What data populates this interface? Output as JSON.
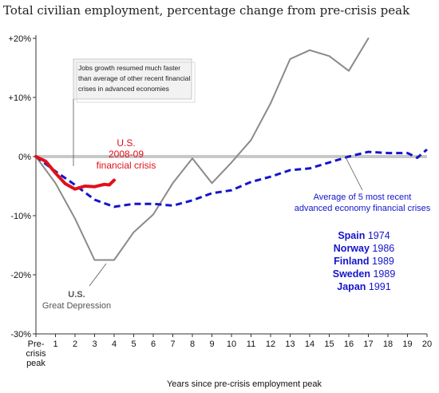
{
  "title": "Total civilian employment, percentage change from pre-crisis peak",
  "chart_data": {
    "type": "line",
    "xlabel": "Years since pre-crisis employment peak",
    "ylabel": "",
    "xlim": [
      0,
      20
    ],
    "ylim": [
      -30,
      20
    ],
    "x_ticks": [
      {
        "value": 0,
        "label": "Pre-\ncrisis\npeak"
      },
      {
        "value": 1,
        "label": "1"
      },
      {
        "value": 2,
        "label": "2"
      },
      {
        "value": 3,
        "label": "3"
      },
      {
        "value": 4,
        "label": "4"
      },
      {
        "value": 5,
        "label": "5"
      },
      {
        "value": 6,
        "label": "6"
      },
      {
        "value": 7,
        "label": "7"
      },
      {
        "value": 8,
        "label": "8"
      },
      {
        "value": 9,
        "label": "9"
      },
      {
        "value": 10,
        "label": "10"
      },
      {
        "value": 11,
        "label": "11"
      },
      {
        "value": 12,
        "label": "12"
      },
      {
        "value": 13,
        "label": "13"
      },
      {
        "value": 14,
        "label": "14"
      },
      {
        "value": 15,
        "label": "15"
      },
      {
        "value": 16,
        "label": "16"
      },
      {
        "value": 17,
        "label": "17"
      },
      {
        "value": 18,
        "label": "18"
      },
      {
        "value": 19,
        "label": "19"
      },
      {
        "value": 20,
        "label": "20"
      }
    ],
    "y_ticks": [
      {
        "value": 20,
        "label": "+20%"
      },
      {
        "value": 10,
        "label": "+10%"
      },
      {
        "value": 0,
        "label": "0%"
      },
      {
        "value": -10,
        "label": "-10%"
      },
      {
        "value": -20,
        "label": "-20%"
      },
      {
        "value": -30,
        "label": "-30%"
      }
    ],
    "grid": false,
    "series": [
      {
        "name": "U.S. Great Depression",
        "color": "#8a8a8a",
        "style": "solid",
        "points": [
          [
            0,
            0
          ],
          [
            1,
            -4.5
          ],
          [
            2,
            -10.5
          ],
          [
            3,
            -17.5
          ],
          [
            4,
            -17.5
          ],
          [
            5,
            -12.8
          ],
          [
            6,
            -9.8
          ],
          [
            7,
            -4.5
          ],
          [
            8,
            -0.3
          ],
          [
            9,
            -4.5
          ],
          [
            10,
            -1
          ],
          [
            11,
            2.8
          ],
          [
            12,
            9
          ],
          [
            13,
            16.5
          ],
          [
            14,
            18
          ],
          [
            15,
            17
          ],
          [
            16,
            14.5
          ],
          [
            17,
            20
          ]
        ]
      },
      {
        "name": "U.S. 2008-09 financial crisis",
        "color": "#e0101a",
        "style": "solid",
        "points": [
          [
            0,
            0
          ],
          [
            0.5,
            -0.8
          ],
          [
            1,
            -2.8
          ],
          [
            1.5,
            -4.6
          ],
          [
            2,
            -5.5
          ],
          [
            2.5,
            -5
          ],
          [
            3,
            -5.1
          ],
          [
            3.5,
            -4.7
          ],
          [
            3.75,
            -4.8
          ],
          [
            4,
            -4
          ]
        ]
      },
      {
        "name": "Average of 5 most recent advanced economy financial crises",
        "color": "#1414cc",
        "style": "dashed",
        "points": [
          [
            0,
            0
          ],
          [
            1,
            -2.5
          ],
          [
            2,
            -4.8
          ],
          [
            3,
            -7.3
          ],
          [
            4,
            -8.5
          ],
          [
            5,
            -8
          ],
          [
            6,
            -8
          ],
          [
            7,
            -8.3
          ],
          [
            8,
            -7.4
          ],
          [
            9,
            -6.2
          ],
          [
            10,
            -5.7
          ],
          [
            11,
            -4.3
          ],
          [
            12,
            -3.4
          ],
          [
            13,
            -2.3
          ],
          [
            14,
            -2
          ],
          [
            15,
            -1
          ],
          [
            16,
            0
          ],
          [
            17,
            0.8
          ],
          [
            18,
            0.6
          ],
          [
            19,
            0.6
          ],
          [
            19.5,
            -0.2
          ],
          [
            20,
            1.2
          ]
        ]
      }
    ],
    "annotations": {
      "box_text": [
        "Jobs growth resumed much faster",
        "than average of other recent financial",
        "crises in advanced economies"
      ],
      "us_label": [
        "U.S.",
        "2008-09",
        "financial crisis"
      ],
      "avg_label": [
        "Average of 5 most recent",
        "advanced economy financial crises"
      ],
      "gd_label": [
        "U.S.",
        "Great Depression"
      ],
      "countries": [
        {
          "name": "Spain",
          "year": "1974"
        },
        {
          "name": "Norway",
          "year": "1986"
        },
        {
          "name": "Finland",
          "year": "1989"
        },
        {
          "name": "Sweden",
          "year": "1989"
        },
        {
          "name": "Japan",
          "year": "1991"
        }
      ]
    }
  }
}
